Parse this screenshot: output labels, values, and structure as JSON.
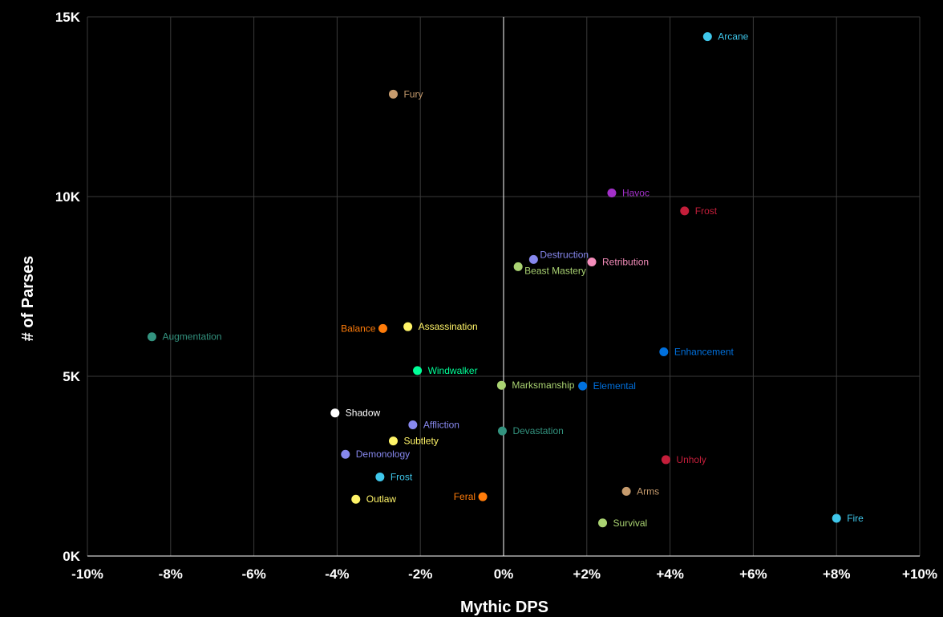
{
  "chart_data": {
    "type": "scatter",
    "title": "",
    "xlabel": "Mythic DPS",
    "ylabel": "# of Parses",
    "xlim": [
      -10,
      10
    ],
    "ylim": [
      0,
      15000
    ],
    "grid": true,
    "x_ticks": [
      {
        "value": -10,
        "label": "-10%"
      },
      {
        "value": -8,
        "label": "-8%"
      },
      {
        "value": -6,
        "label": "-6%"
      },
      {
        "value": -4,
        "label": "-4%"
      },
      {
        "value": -2,
        "label": "-2%"
      },
      {
        "value": 0,
        "label": "0%"
      },
      {
        "value": 2,
        "label": "+2%"
      },
      {
        "value": 4,
        "label": "+4%"
      },
      {
        "value": 6,
        "label": "+6%"
      },
      {
        "value": 8,
        "label": "+8%"
      },
      {
        "value": 10,
        "label": "+10%"
      }
    ],
    "y_ticks": [
      {
        "value": 0,
        "label": "0K"
      },
      {
        "value": 5000,
        "label": "5K"
      },
      {
        "value": 10000,
        "label": "10K"
      },
      {
        "value": 15000,
        "label": "15K"
      }
    ],
    "points": [
      {
        "label": "Arcane",
        "x": 4.9,
        "y": 14450,
        "color": "#3fc7eb",
        "label_side": "right"
      },
      {
        "label": "Fury",
        "x": -2.65,
        "y": 12850,
        "color": "#c69b6d",
        "label_side": "right"
      },
      {
        "label": "Havoc",
        "x": 2.6,
        "y": 10100,
        "color": "#a330c9",
        "label_side": "right"
      },
      {
        "label": "Frost",
        "x": 4.35,
        "y": 9600,
        "color": "#c41e3a",
        "label_side": "right"
      },
      {
        "label": "Destruction",
        "x": 0.72,
        "y": 8250,
        "color": "#8788ee",
        "label_side": "right-up"
      },
      {
        "label": "Retribution",
        "x": 2.12,
        "y": 8180,
        "color": "#f48cba",
        "label_side": "right"
      },
      {
        "label": "Beast Mastery",
        "x": 0.35,
        "y": 8050,
        "color": "#aad372",
        "label_side": "right-down"
      },
      {
        "label": "Augmentation",
        "x": -8.45,
        "y": 6100,
        "color": "#33937f",
        "label_side": "right"
      },
      {
        "label": "Balance",
        "x": -2.9,
        "y": 6330,
        "color": "#ff7c0a",
        "label_side": "left"
      },
      {
        "label": "Assassination",
        "x": -2.3,
        "y": 6380,
        "color": "#fff468",
        "label_side": "right"
      },
      {
        "label": "Enhancement",
        "x": 3.85,
        "y": 5680,
        "color": "#0070dd",
        "label_side": "right"
      },
      {
        "label": "Windwalker",
        "x": -2.07,
        "y": 5160,
        "color": "#00ff98",
        "label_side": "right"
      },
      {
        "label": "Marksmanship",
        "x": -0.05,
        "y": 4750,
        "color": "#aad372",
        "label_side": "right"
      },
      {
        "label": "Elemental",
        "x": 1.9,
        "y": 4730,
        "color": "#0070dd",
        "label_side": "right"
      },
      {
        "label": "Shadow",
        "x": -4.05,
        "y": 3980,
        "color": "#ffffff",
        "label_side": "right"
      },
      {
        "label": "Affliction",
        "x": -2.18,
        "y": 3650,
        "color": "#8788ee",
        "label_side": "right"
      },
      {
        "label": "Devastation",
        "x": -0.03,
        "y": 3480,
        "color": "#33937f",
        "label_side": "right"
      },
      {
        "label": "Subtlety",
        "x": -2.65,
        "y": 3200,
        "color": "#fff468",
        "label_side": "right"
      },
      {
        "label": "Demonology",
        "x": -3.8,
        "y": 2830,
        "color": "#8788ee",
        "label_side": "right"
      },
      {
        "label": "Unholy",
        "x": 3.9,
        "y": 2680,
        "color": "#c41e3a",
        "label_side": "right"
      },
      {
        "label": "Frost",
        "x": -2.97,
        "y": 2200,
        "color": "#3fc7eb",
        "label_side": "right"
      },
      {
        "label": "Arms",
        "x": 2.95,
        "y": 1800,
        "color": "#c69b6d",
        "label_side": "right"
      },
      {
        "label": "Feral",
        "x": -0.5,
        "y": 1650,
        "color": "#ff7c0a",
        "label_side": "left"
      },
      {
        "label": "Outlaw",
        "x": -3.55,
        "y": 1580,
        "color": "#fff468",
        "label_side": "right"
      },
      {
        "label": "Fire",
        "x": 8.0,
        "y": 1050,
        "color": "#3fc7eb",
        "label_side": "right"
      },
      {
        "label": "Survival",
        "x": 2.38,
        "y": 920,
        "color": "#aad372",
        "label_side": "right"
      }
    ]
  }
}
